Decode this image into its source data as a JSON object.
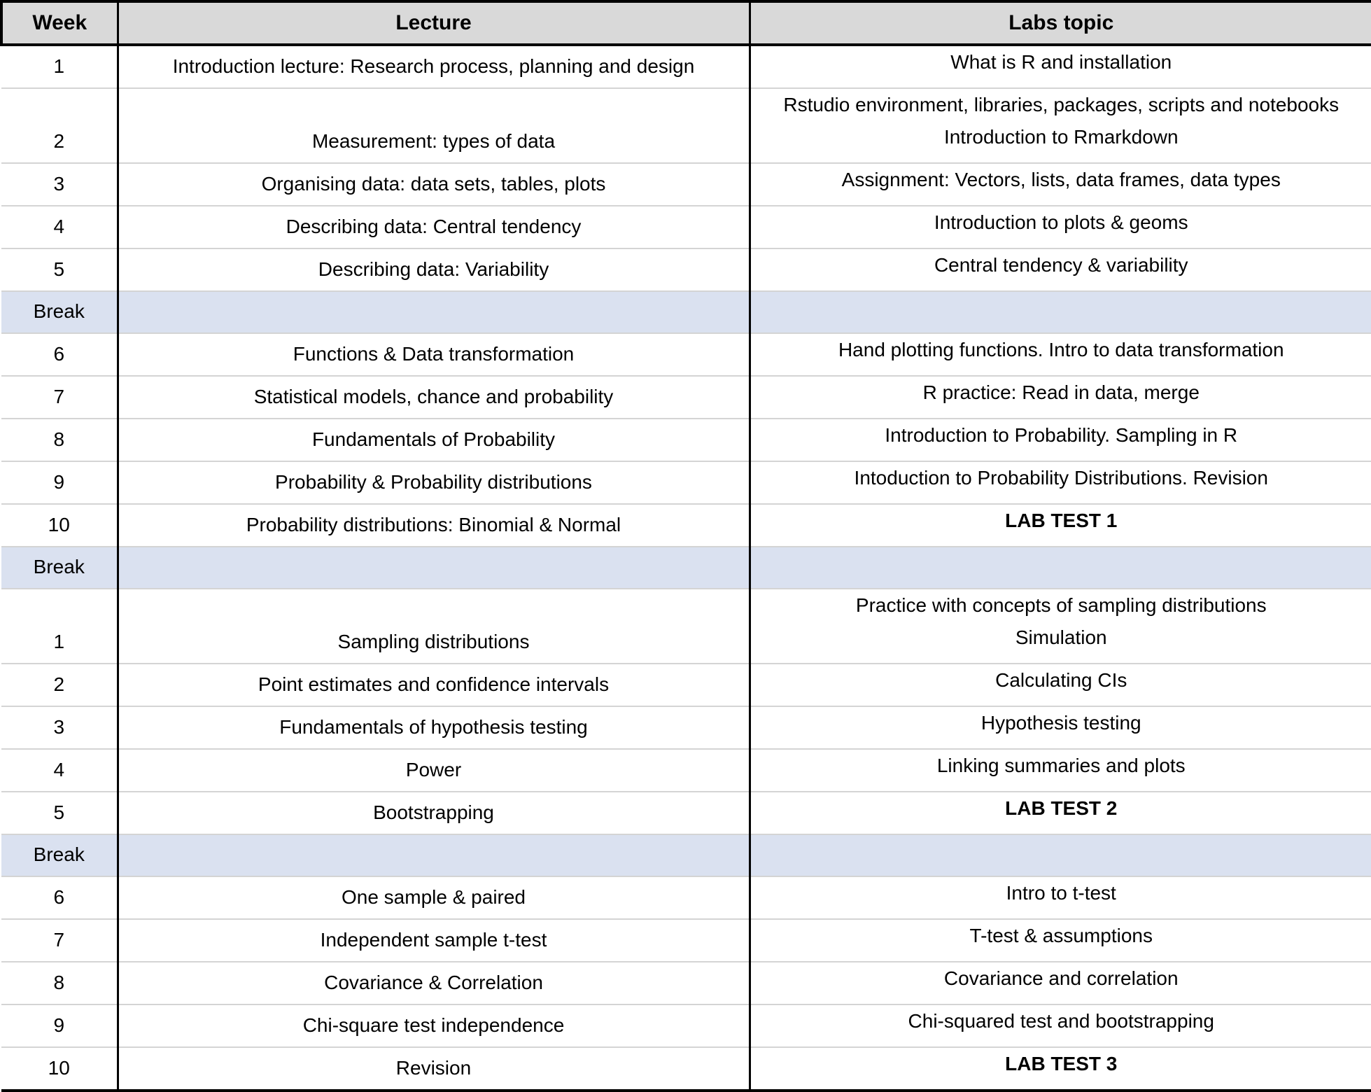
{
  "table": {
    "columns": [
      {
        "label": "Week"
      },
      {
        "label": "Lecture"
      },
      {
        "label": "Labs topic"
      }
    ],
    "colors": {
      "header_bg": "#d9d9d9",
      "break_row_bg": "#dae1f0",
      "black_border": "#000000",
      "row_divider_gray": "#d4d4d4"
    },
    "rows": [
      {
        "type": "week",
        "week": "1",
        "lecture": "Introduction lecture: Research process, planning and design",
        "labs": [
          "What is R and installation"
        ],
        "labs_bold": false
      },
      {
        "type": "week",
        "week": "2",
        "lecture": "Measurement: types of data",
        "labs": [
          "Rstudio environment, libraries, packages, scripts and notebooks",
          "Introduction to Rmarkdown"
        ],
        "labs_bold": false
      },
      {
        "type": "week",
        "week": "3",
        "lecture": "Organising data: data sets, tables, plots",
        "labs": [
          "Assignment: Vectors, lists, data frames, data types"
        ],
        "labs_bold": false
      },
      {
        "type": "week",
        "week": "4",
        "lecture": "Describing data: Central tendency",
        "labs": [
          "Introduction to plots & geoms"
        ],
        "labs_bold": false
      },
      {
        "type": "week",
        "week": "5",
        "lecture": "Describing data: Variability",
        "labs": [
          "Central tendency & variability"
        ],
        "labs_bold": false
      },
      {
        "type": "break",
        "week": "Break",
        "lecture": "",
        "labs": [],
        "labs_bold": false
      },
      {
        "type": "week",
        "week": "6",
        "lecture": "Functions & Data transformation",
        "labs": [
          "Hand plotting functions. Intro to data transformation"
        ],
        "labs_bold": false
      },
      {
        "type": "week",
        "week": "7",
        "lecture": "Statistical models, chance and probability",
        "labs": [
          "R practice: Read in data, merge"
        ],
        "labs_bold": false
      },
      {
        "type": "week",
        "week": "8",
        "lecture": "Fundamentals of Probability",
        "labs": [
          "Introduction to Probability. Sampling in R"
        ],
        "labs_bold": false
      },
      {
        "type": "week",
        "week": "9",
        "lecture": "Probability & Probability distributions",
        "labs": [
          "Intoduction to Probability Distributions. Revision"
        ],
        "labs_bold": false
      },
      {
        "type": "week",
        "week": "10",
        "lecture": "Probability distributions: Binomial & Normal",
        "labs": [
          "LAB TEST 1"
        ],
        "labs_bold": true
      },
      {
        "type": "break",
        "week": "Break",
        "lecture": "",
        "labs": [],
        "labs_bold": false
      },
      {
        "type": "week",
        "week": "1",
        "lecture": "Sampling distributions",
        "labs": [
          "Practice with concepts of sampling distributions",
          "Simulation"
        ],
        "labs_bold": false
      },
      {
        "type": "week",
        "week": "2",
        "lecture": "Point estimates and confidence intervals",
        "labs": [
          "Calculating CIs"
        ],
        "labs_bold": false
      },
      {
        "type": "week",
        "week": "3",
        "lecture": "Fundamentals of hypothesis testing",
        "labs": [
          "Hypothesis testing"
        ],
        "labs_bold": false
      },
      {
        "type": "week",
        "week": "4",
        "lecture": "Power",
        "labs": [
          "Linking summaries and plots"
        ],
        "labs_bold": false
      },
      {
        "type": "week",
        "week": "5",
        "lecture": "Bootstrapping",
        "labs": [
          "LAB TEST 2"
        ],
        "labs_bold": true
      },
      {
        "type": "break",
        "week": "Break",
        "lecture": "",
        "labs": [],
        "labs_bold": false
      },
      {
        "type": "week",
        "week": "6",
        "lecture": "One sample & paired",
        "labs": [
          "Intro to t-test"
        ],
        "labs_bold": false
      },
      {
        "type": "week",
        "week": "7",
        "lecture": "Independent sample t-test",
        "labs": [
          "T-test & assumptions"
        ],
        "labs_bold": false
      },
      {
        "type": "week",
        "week": "8",
        "lecture": "Covariance & Correlation",
        "labs": [
          "Covariance and correlation"
        ],
        "labs_bold": false
      },
      {
        "type": "week",
        "week": "9",
        "lecture": "Chi-square test independence",
        "labs": [
          "Chi-squared test and bootstrapping"
        ],
        "labs_bold": false
      },
      {
        "type": "week",
        "week": "10",
        "lecture": "Revision",
        "labs": [
          "LAB TEST 3"
        ],
        "labs_bold": true
      }
    ]
  }
}
